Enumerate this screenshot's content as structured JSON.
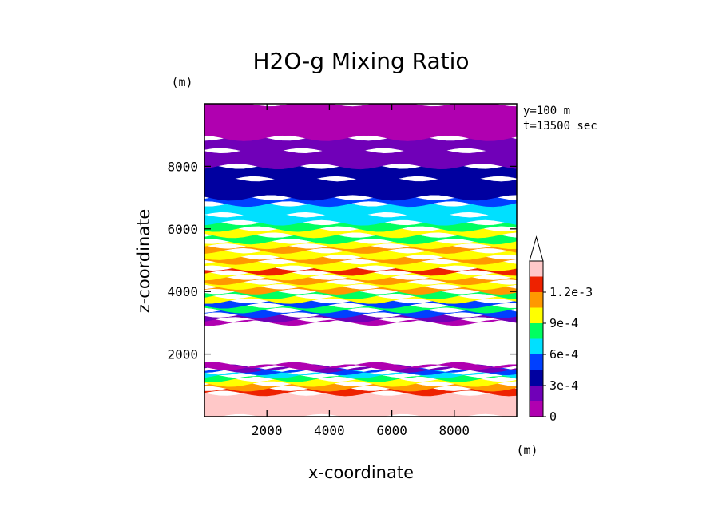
{
  "chart_data": {
    "type": "heatmap",
    "title": "H2O-g Mixing Ratio",
    "xlabel": "x-coordinate",
    "ylabel": "z-coordinate",
    "x_unit": "(m)",
    "y_unit": "(m)",
    "xlim": [
      0,
      10000
    ],
    "ylim": [
      0,
      10000
    ],
    "x_ticks": [
      2000,
      4000,
      6000,
      8000
    ],
    "x_tick_labels": [
      "2000",
      "4000",
      "6000",
      "8000"
    ],
    "y_ticks": [
      2000,
      4000,
      6000,
      8000
    ],
    "y_tick_labels": [
      "2000",
      "4000",
      "6000",
      "8000"
    ],
    "annotations": [
      "y=100 m",
      "t=13500 sec"
    ],
    "colorbar": {
      "levels": [
        0,
        0.00015,
        0.0003,
        0.00045,
        0.0006,
        0.00075,
        0.0009,
        0.00105,
        0.0012
      ],
      "tick_values": [
        0,
        0.0003,
        0.0006,
        0.0009,
        0.0012
      ],
      "tick_labels": [
        "0",
        "3e-4",
        "6e-4",
        "9e-4",
        "1.2e-3"
      ],
      "colors": [
        "#b000b0",
        "#7000b8",
        "#0000a0",
        "#0040ff",
        "#00e0ff",
        "#00ff60",
        "#ffff00",
        "#ff9900",
        "#ee2200",
        "#ffc8c8"
      ],
      "overflow_color": "#ffffff"
    },
    "layers": [
      {
        "z_from": 0,
        "z_to": 750,
        "color_index": 9
      },
      {
        "z_from": 750,
        "z_to": 900,
        "color_index": 8
      },
      {
        "z_from": 900,
        "z_to": 1050,
        "color_index": 7
      },
      {
        "z_from": 1050,
        "z_to": 1200,
        "color_index": 6
      },
      {
        "z_from": 1200,
        "z_to": 1320,
        "color_index": 5
      },
      {
        "z_from": 1320,
        "z_to": 1420,
        "color_index": 4
      },
      {
        "z_from": 1420,
        "z_to": 1500,
        "color_index": 3
      },
      {
        "z_from": 1500,
        "z_to": 1580,
        "color_index": 1
      },
      {
        "z_from": 1580,
        "z_to": 1650,
        "color_index": 0
      },
      {
        "z_from": 3000,
        "z_to": 3100,
        "color_index": 0
      },
      {
        "z_from": 3100,
        "z_to": 3250,
        "color_index": 1
      },
      {
        "z_from": 3250,
        "z_to": 3400,
        "color_index": 3
      },
      {
        "z_from": 3400,
        "z_to": 3550,
        "color_index": 5
      },
      {
        "z_from": 3550,
        "z_to": 3700,
        "color_index": 3
      },
      {
        "z_from": 3700,
        "z_to": 3850,
        "color_index": 6
      },
      {
        "z_from": 3850,
        "z_to": 4000,
        "color_index": 5
      },
      {
        "z_from": 4000,
        "z_to": 4150,
        "color_index": 7
      },
      {
        "z_from": 4150,
        "z_to": 4300,
        "color_index": 6
      },
      {
        "z_from": 4300,
        "z_to": 4450,
        "color_index": 7
      },
      {
        "z_from": 4450,
        "z_to": 4600,
        "color_index": 6
      },
      {
        "z_from": 4600,
        "z_to": 4750,
        "color_index": 8
      },
      {
        "z_from": 4750,
        "z_to": 4950,
        "color_index": 6
      },
      {
        "z_from": 4950,
        "z_to": 5100,
        "color_index": 7
      },
      {
        "z_from": 5100,
        "z_to": 5300,
        "color_index": 6
      },
      {
        "z_from": 5300,
        "z_to": 5450,
        "color_index": 7
      },
      {
        "z_from": 5450,
        "z_to": 5600,
        "color_index": 6
      },
      {
        "z_from": 5600,
        "z_to": 5800,
        "color_index": 5
      },
      {
        "z_from": 5800,
        "z_to": 6000,
        "color_index": 6
      },
      {
        "z_from": 6000,
        "z_to": 6200,
        "color_index": 5
      },
      {
        "z_from": 6200,
        "z_to": 6450,
        "color_index": 4
      },
      {
        "z_from": 6450,
        "z_to": 6800,
        "color_index": 4
      },
      {
        "z_from": 6800,
        "z_to": 7000,
        "color_index": 3
      },
      {
        "z_from": 7000,
        "z_to": 7600,
        "color_index": 2
      },
      {
        "z_from": 7600,
        "z_to": 8000,
        "color_index": 2
      },
      {
        "z_from": 8000,
        "z_to": 8500,
        "color_index": 1
      },
      {
        "z_from": 8500,
        "z_to": 8900,
        "color_index": 1
      },
      {
        "z_from": 8900,
        "z_to": 10000,
        "color_index": 0
      }
    ]
  }
}
